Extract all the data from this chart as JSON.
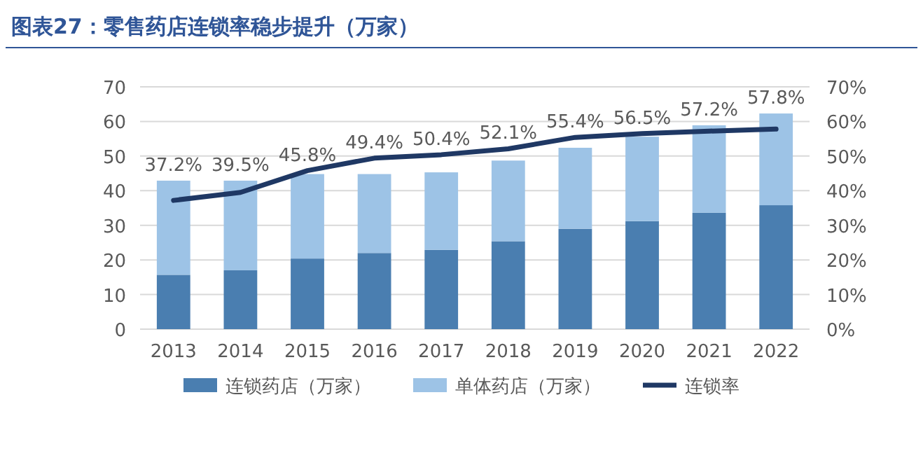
{
  "chart_data": {
    "type": "bar",
    "title": "图表27：零售药店连锁率稳步提升（万家）",
    "categories": [
      "2013",
      "2014",
      "2015",
      "2016",
      "2017",
      "2018",
      "2019",
      "2020",
      "2021",
      "2022"
    ],
    "stacked": true,
    "grid": "y",
    "legend": "bottom",
    "ylim": [
      0,
      70
    ],
    "yticks": [
      0,
      10,
      20,
      30,
      40,
      50,
      60,
      70
    ],
    "y2lim": [
      0,
      70
    ],
    "y2ticks": [
      {
        "value": 0,
        "label": "0%"
      },
      {
        "value": 10,
        "label": "10%"
      },
      {
        "value": 20,
        "label": "20%"
      },
      {
        "value": 30,
        "label": "30%"
      },
      {
        "value": 40,
        "label": "40%"
      },
      {
        "value": 50,
        "label": "50%"
      },
      {
        "value": 60,
        "label": "60%"
      },
      {
        "value": 70,
        "label": "70%"
      }
    ],
    "series": [
      {
        "name": "连锁药店（万家）",
        "color": "#4a7eb0",
        "values": [
          15.7,
          17.0,
          20.4,
          22.0,
          22.9,
          25.4,
          29.0,
          31.2,
          33.6,
          35.8
        ]
      },
      {
        "name": "单体药店（万家）",
        "color": "#9dc3e6",
        "values": [
          27.2,
          25.9,
          24.4,
          22.8,
          22.4,
          23.3,
          23.4,
          24.4,
          25.3,
          26.5
        ]
      },
      {
        "name": "连锁率",
        "color": "#1f3864",
        "type": "line",
        "axis": "y2",
        "values": [
          37.2,
          39.5,
          45.8,
          49.4,
          50.4,
          52.1,
          55.4,
          56.5,
          57.2,
          57.8
        ],
        "value_labels": [
          "37.2%",
          "39.5%",
          "45.8%",
          "49.4%",
          "50.4%",
          "52.1%",
          "55.4%",
          "56.5%",
          "57.2%",
          "57.8%"
        ]
      }
    ]
  }
}
